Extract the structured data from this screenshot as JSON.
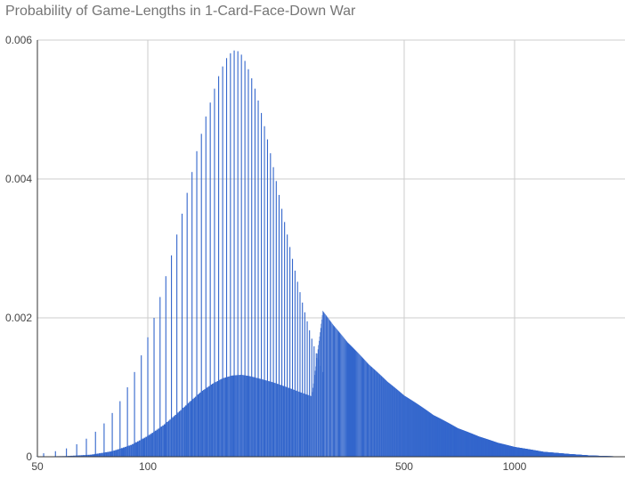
{
  "chart_data": {
    "type": "bar",
    "title": "Probability of Game-Lengths in 1-Card-Face-Down War",
    "xlabel": "",
    "ylabel": "",
    "x_scale": "log",
    "xlim": [
      50,
      2000
    ],
    "ylim": [
      0,
      0.006
    ],
    "x_ticks": [
      50,
      100,
      500,
      1000
    ],
    "x_tick_labels": [
      "50",
      "100",
      "500",
      "1000"
    ],
    "y_ticks": [
      0,
      0.002,
      0.004,
      0.006
    ],
    "y_tick_labels": [
      "0",
      "0.002",
      "0.004",
      "0.006"
    ],
    "grid": true,
    "legend": "none",
    "color": "#3366cc",
    "series": [
      {
        "note_x_values": "integer game lengths; probability spike at every 4th length (parity-aligned), low background elsewhere; spikes end near x=300",
        "spike_x": [
          52,
          56,
          60,
          64,
          68,
          72,
          76,
          80,
          84,
          88,
          92,
          96,
          100,
          104,
          108,
          112,
          116,
          120,
          124,
          128,
          132,
          136,
          140,
          144,
          148,
          152,
          156,
          160,
          164,
          168,
          172,
          176,
          180,
          184,
          188,
          192,
          196,
          200,
          204,
          208,
          212,
          216,
          220,
          224,
          228,
          232,
          236,
          240,
          244,
          248,
          252,
          256,
          260,
          264,
          268,
          272,
          276,
          280,
          284,
          288,
          292,
          296,
          300
        ],
        "spike_y": [
          5e-05,
          8e-05,
          0.00012,
          0.00018,
          0.00026,
          0.00036,
          0.00048,
          0.00063,
          0.0008,
          0.001,
          0.00122,
          0.00146,
          0.00172,
          0.002,
          0.0023,
          0.0026,
          0.0029,
          0.0032,
          0.0035,
          0.0038,
          0.0041,
          0.0044,
          0.00465,
          0.0049,
          0.0051,
          0.0053,
          0.00548,
          0.00562,
          0.00574,
          0.00581,
          0.00585,
          0.00584,
          0.00579,
          0.0057,
          0.00558,
          0.00545,
          0.0053,
          0.00513,
          0.00495,
          0.00476,
          0.00457,
          0.00437,
          0.00417,
          0.00397,
          0.00377,
          0.00357,
          0.00338,
          0.0032,
          0.00302,
          0.00285,
          0.00268,
          0.00252,
          0.00237,
          0.00222,
          0.00208,
          0.00195,
          0.00182,
          0.0017,
          0.00159,
          0.00149,
          0.0014,
          0.00131,
          0.00122
        ],
        "background_x": [
          50,
          60,
          70,
          80,
          90,
          100,
          110,
          120,
          130,
          140,
          150,
          160,
          170,
          180,
          190,
          200,
          220,
          240,
          260,
          280,
          300,
          320,
          350,
          400,
          450,
          500,
          600,
          700,
          800,
          900,
          1000,
          1200,
          1400,
          1600,
          1800,
          2000
        ],
        "background_y": [
          3e-06,
          1e-05,
          3e-05,
          8e-05,
          0.00017,
          0.0003,
          0.00045,
          0.00062,
          0.00079,
          0.00094,
          0.00105,
          0.00113,
          0.00117,
          0.00118,
          0.00116,
          0.00113,
          0.00107,
          0.001,
          0.00093,
          0.00087,
          0.0021,
          0.0019,
          0.00165,
          0.00133,
          0.00108,
          0.00088,
          0.0006,
          0.00041,
          0.00029,
          0.0002,
          0.00014,
          7e-05,
          4e-05,
          1.8e-05,
          8e-06,
          3e-06
        ]
      }
    ]
  }
}
